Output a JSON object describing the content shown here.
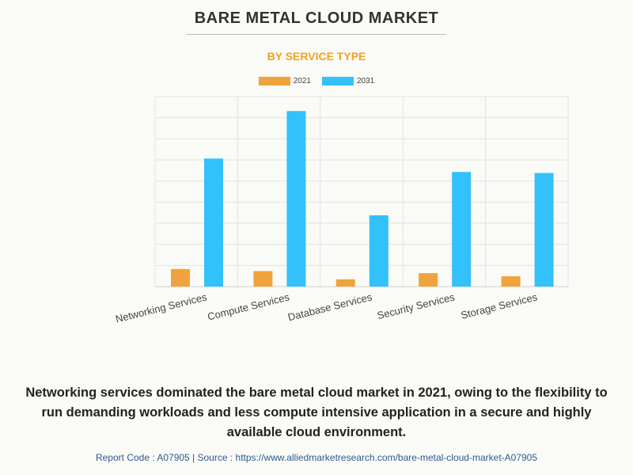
{
  "header": {
    "title": "BARE METAL CLOUD MARKET",
    "subtitle": "BY SERVICE TYPE"
  },
  "colors": {
    "series_2021": "#f0a33c",
    "series_2031": "#33c1fb",
    "subtitle": "#f4a11e",
    "footer": "#2f5a8f"
  },
  "chart_data": {
    "type": "bar",
    "title": "BARE METAL CLOUD MARKET",
    "subtitle": "BY SERVICE TYPE",
    "categories": [
      "Networking Services",
      "Compute Services",
      "Database Services",
      "Security Services",
      "Storage Services"
    ],
    "series": [
      {
        "name": "2021",
        "values": [
          8.5,
          7.5,
          3.5,
          6.5,
          5.0
        ]
      },
      {
        "name": "2031",
        "values": [
          62,
          85,
          34.5,
          55.5,
          55
        ]
      }
    ],
    "ylim": [
      0,
      92
    ],
    "xlabel": "",
    "ylabel": "",
    "grid": true,
    "legend": "top-center"
  },
  "caption": "Networking services dominated the bare metal cloud market in 2021, owing to the flexibility to run demanding workloads and less compute intensive application in a secure and highly available cloud environment.",
  "footer": "Report Code : A07905  |  Source : https://www.alliedmarketresearch.com/bare-metal-cloud-market-A07905"
}
